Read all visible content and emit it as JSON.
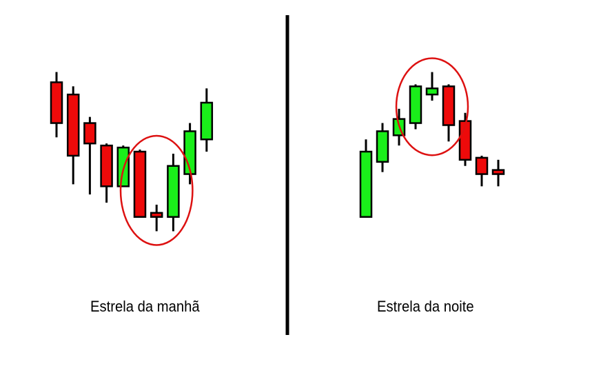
{
  "colors": {
    "bull": "#1aee1a",
    "bear": "#ee0a0a",
    "outline": "#000000",
    "highlight": "#dd1111",
    "divider": "#000000"
  },
  "panels": [
    {
      "caption": "Estrela da manhã",
      "candles": [
        {
          "dir": "down",
          "open": 84,
          "close": 64,
          "high": 89,
          "low": 57
        },
        {
          "dir": "down",
          "open": 78,
          "close": 48,
          "high": 82,
          "low": 34
        },
        {
          "dir": "down",
          "open": 64,
          "close": 54,
          "high": 67,
          "low": 29
        },
        {
          "dir": "down",
          "open": 53,
          "close": 33,
          "high": 54,
          "low": 25
        },
        {
          "dir": "up",
          "open": 33,
          "close": 52,
          "high": 53,
          "low": 33
        },
        {
          "dir": "down",
          "open": 50,
          "close": 18,
          "high": 51,
          "low": 18
        },
        {
          "dir": "down",
          "open": 20,
          "close": 18,
          "high": 24,
          "low": 11
        },
        {
          "dir": "up",
          "open": 18,
          "close": 43,
          "high": 49,
          "low": 11
        },
        {
          "dir": "up",
          "open": 39,
          "close": 60,
          "high": 64,
          "low": 34
        },
        {
          "dir": "up",
          "open": 56,
          "close": 74,
          "high": 81,
          "low": 50
        }
      ],
      "highlight": {
        "from": 5,
        "to": 7
      }
    },
    {
      "caption": "Estrela da noite",
      "candles": [
        {
          "dir": "up",
          "open": 18,
          "close": 50,
          "high": 56,
          "low": 18
        },
        {
          "dir": "up",
          "open": 45,
          "close": 60,
          "high": 64,
          "low": 40
        },
        {
          "dir": "up",
          "open": 58,
          "close": 66,
          "high": 71,
          "low": 53
        },
        {
          "dir": "up",
          "open": 64,
          "close": 82,
          "high": 83,
          "low": 61
        },
        {
          "dir": "up",
          "open": 78,
          "close": 81,
          "high": 89,
          "low": 75
        },
        {
          "dir": "down",
          "open": 82,
          "close": 63,
          "high": 83,
          "low": 55
        },
        {
          "dir": "down",
          "open": 65,
          "close": 46,
          "high": 69,
          "low": 43
        },
        {
          "dir": "down",
          "open": 47,
          "close": 39,
          "high": 48,
          "low": 33
        },
        {
          "dir": "down",
          "open": 41,
          "close": 39,
          "high": 46,
          "low": 33
        }
      ],
      "highlight": {
        "from": 3,
        "to": 5
      }
    }
  ]
}
